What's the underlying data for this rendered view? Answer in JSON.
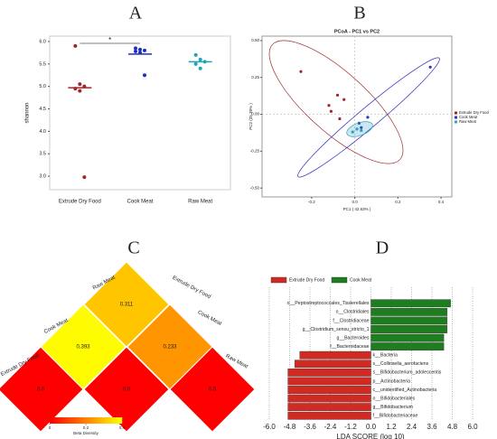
{
  "chart_data": [
    {
      "type": "strip",
      "panel": "A",
      "ylabel": "shannon",
      "categories": [
        "Extrude Dry Food",
        "Cook Meat",
        "Raw Meat"
      ],
      "colors": [
        "#a0282c",
        "#1f2fbf",
        "#22a3b8"
      ],
      "points": [
        [
          5.9,
          5.05,
          5.0,
          4.95,
          4.9,
          2.98
        ],
        [
          5.85,
          5.82,
          5.8,
          5.78,
          5.75,
          5.25
        ],
        [
          5.7,
          5.6,
          5.55,
          5.5,
          5.4
        ]
      ],
      "means": [
        4.97,
        5.72,
        5.55
      ],
      "significance_label": "*",
      "ylim": [
        2.7,
        6.12
      ],
      "yticks": [
        {
          "value": 3,
          "label": "3.0"
        },
        3.5,
        {
          "value": 4,
          "label": "4.0"
        },
        4.5,
        {
          "value": 5,
          "label": "5.0"
        },
        5.5,
        {
          "value": 6,
          "label": "6.0"
        }
      ]
    },
    {
      "type": "scatter",
      "panel": "B",
      "title": "PCoA - PC1 vs PC2",
      "xlabel": "PC1 ( 42.63% )",
      "ylabel": "PC2 (25.38% )",
      "series": [
        {
          "name": "Extrude Dry Food",
          "color": "#a0282c",
          "x": [
            -0.25,
            -0.08,
            -0.12,
            -0.11,
            -0.05,
            -0.07
          ],
          "values": [
            0.29,
            0.13,
            0.06,
            0.02,
            0.1,
            -0.03
          ]
        },
        {
          "name": "Cook Meat",
          "color": "#3030c0",
          "x": [
            0.35,
            0.06,
            0.02,
            0.03
          ],
          "values": [
            0.32,
            -0.02,
            -0.06,
            -0.09
          ]
        },
        {
          "name": "Raw Meat",
          "color": "#2fa0c0",
          "x": [
            0.01,
            -0.01,
            0.03
          ],
          "values": [
            -0.1,
            -0.12,
            -0.11
          ]
        }
      ],
      "xlim": [
        -0.43,
        0.45
      ],
      "ylim": [
        -0.56,
        0.53
      ],
      "xticks": [
        -0.2,
        {
          "value": 0,
          "label": "0.0"
        },
        0.2,
        0.4
      ],
      "yticks": [
        {
          "value": -0.5,
          "label": "-0.50"
        },
        -0.25,
        {
          "value": 0,
          "label": "0.00"
        },
        0.25,
        {
          "value": 0.5,
          "label": "0.50"
        }
      ]
    },
    {
      "type": "heatmap",
      "panel": "C",
      "left_labels": [
        "Extrude Dry Food",
        "Cook Meat",
        "Raw Meat"
      ],
      "right_labels": [
        "Extrude Dry Food",
        "Cook Meat",
        "Raw Meat"
      ],
      "values": [
        0.311,
        0.393,
        0.233,
        0,
        0,
        0
      ],
      "value_labels": [
        "0.311",
        "0.393",
        "0.233",
        "0.0",
        "0.0",
        "0.0"
      ],
      "colors": [
        "#ff0000",
        "#ffff00"
      ],
      "clim": [
        0,
        0.4
      ],
      "cticks": [
        0,
        0.2,
        0.4
      ],
      "colorbar_label": "Beta Diversity"
    },
    {
      "type": "bar",
      "panel": "D",
      "xlabel": "LDA SCORE (log 10)",
      "series": [
        {
          "name": "Extrude Dry Food",
          "color": "#d02a22"
        },
        {
          "name": "Cook Meat",
          "color": "#1e7d1e"
        }
      ],
      "categories": [
        "o__Peptostreptococcales_Tissierellales",
        "o__Clostridiales",
        "f__Clostridiaceae",
        "g__Clostridium_sensu_stricto_1",
        "g__Bacteroides",
        "f__Bacteroidaceae",
        "k__Bacteria",
        "s__Collinsella_aerofaciens",
        "s__Bifidobacterium_adolescentis",
        "p__Actinobacteria",
        "c__unidentified_Actinobacteria",
        "o__Bifidobacteriales",
        "g__Bifidobacterium",
        "f__Bifidobacteriaceae"
      ],
      "values": [
        4.7,
        4.5,
        4.5,
        4.5,
        4.3,
        4.3,
        -4.2,
        -4.5,
        -4.9,
        -4.9,
        -4.9,
        -4.9,
        -4.9,
        -4.9
      ],
      "xlim": [
        -6,
        6
      ],
      "xticks": [
        {
          "value": -6,
          "label": "-6.0"
        },
        -4.8,
        -3.6,
        -2.4,
        -1.2,
        {
          "value": 0,
          "label": "0.0"
        },
        1.2,
        2.4,
        3.6,
        4.8,
        {
          "value": 6,
          "label": "6.0"
        }
      ]
    }
  ]
}
